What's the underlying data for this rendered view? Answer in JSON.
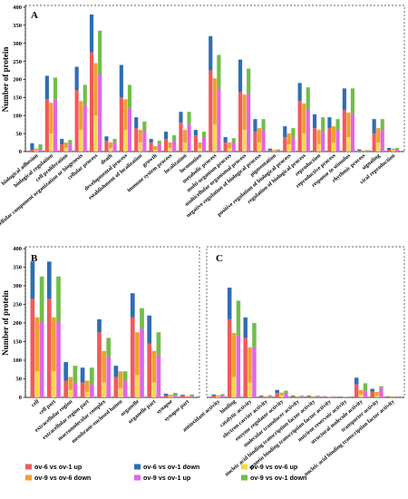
{
  "series_legend": [
    {
      "name": "ov-6 vs ov-1 up",
      "color": "#f15a5a"
    },
    {
      "name": "ov-6 vs ov-1 down",
      "color": "#2f6db5"
    },
    {
      "name": "ov-9 vs ov-6 up",
      "color": "#f5d94a"
    },
    {
      "name": "ov-9 vs ov-6 down",
      "color": "#f0a030"
    },
    {
      "name": "ov-9 vs ov-1 up",
      "color": "#e066e6"
    },
    {
      "name": "ov-9 vs ov-1 down",
      "color": "#6fbf4a"
    }
  ],
  "chart_data": [
    {
      "type": "bar",
      "panel": "A",
      "ylabel": "Number of protein",
      "ylim": [
        0,
        400
      ],
      "yticks": [
        0,
        50,
        100,
        150,
        200,
        250,
        300,
        350,
        400
      ],
      "categories": [
        "biological adhesion",
        "biological regulation",
        "cell proliferation",
        "cellular component organization or biogenesis",
        "cellular process",
        "death",
        "developmental process",
        "establishment of localization",
        "growth",
        "immune system process",
        "localization",
        "locomotion",
        "metabolic process",
        "multi-organism process",
        "multicellular organismal process",
        "negative regulation of biological process",
        "pigmentation",
        "positive regulation of biological process",
        "regulation of biological process",
        "reproduction",
        "reproductive process",
        "response to stimulus",
        "rhythmic process",
        "signaling",
        "viral reproduction"
      ],
      "series": [
        {
          "name": "ov-6 vs ov-1 up",
          "values": [
            5,
            145,
            20,
            170,
            275,
            30,
            150,
            65,
            25,
            35,
            80,
            45,
            225,
            25,
            165,
            55,
            3,
            40,
            140,
            65,
            65,
            115,
            2,
            50,
            5
          ]
        },
        {
          "name": "ov-6 vs ov-1 down",
          "values": [
            18,
            65,
            15,
            65,
            105,
            12,
            90,
            30,
            10,
            20,
            30,
            15,
            95,
            15,
            90,
            35,
            5,
            30,
            50,
            38,
            30,
            60,
            4,
            40,
            5
          ]
        },
        {
          "name": "ov-9 vs ov-6 up",
          "values": [
            3,
            50,
            10,
            60,
            100,
            10,
            60,
            25,
            5,
            10,
            25,
            10,
            75,
            10,
            60,
            25,
            2,
            20,
            50,
            20,
            25,
            40,
            1,
            25,
            3
          ]
        },
        {
          "name": "ov-9 vs ov-6 down",
          "values": [
            5,
            85,
            15,
            80,
            145,
            15,
            85,
            35,
            10,
            15,
            35,
            15,
            128,
            15,
            98,
            40,
            3,
            30,
            83,
            40,
            45,
            68,
            2,
            40,
            5
          ]
        },
        {
          "name": "ov-9 vs ov-1 up",
          "values": [
            5,
            145,
            20,
            130,
            215,
            25,
            120,
            58,
            20,
            30,
            75,
            40,
            175,
            25,
            160,
            60,
            3,
            40,
            118,
            55,
            60,
            105,
            2,
            60,
            5
          ]
        },
        {
          "name": "ov-9 vs ov-1 down",
          "values": [
            15,
            60,
            12,
            55,
            120,
            10,
            65,
            25,
            10,
            15,
            35,
            15,
            93,
            12,
            70,
            30,
            3,
            25,
            60,
            40,
            30,
            70,
            2,
            30,
            5
          ]
        }
      ]
    },
    {
      "type": "bar",
      "panel": "B",
      "ylabel": "Number of protein",
      "ylim": [
        0,
        400
      ],
      "yticks": [
        0,
        50,
        100,
        150,
        200,
        250,
        300,
        350,
        400
      ],
      "categories": [
        "cell",
        "cell part",
        "extracellular region",
        "extracellular region part",
        "macromolecular complex",
        "membrane-enclosed lumen",
        "organelle",
        "organelle part",
        "synapse",
        "synapse part"
      ],
      "series": [
        {
          "name": "ov-6 vs ov-1 up",
          "values": [
            265,
            265,
            45,
            40,
            175,
            55,
            215,
            145,
            5,
            4
          ]
        },
        {
          "name": "ov-6 vs ov-1 down",
          "values": [
            100,
            100,
            50,
            40,
            35,
            30,
            65,
            75,
            5,
            3
          ]
        },
        {
          "name": "ov-9 vs ov-6 up",
          "values": [
            70,
            70,
            20,
            15,
            40,
            25,
            60,
            40,
            2,
            1
          ]
        },
        {
          "name": "ov-9 vs ov-6 down",
          "values": [
            145,
            145,
            35,
            30,
            85,
            45,
            115,
            85,
            5,
            3
          ]
        },
        {
          "name": "ov-9 vs ov-1 up",
          "values": [
            205,
            205,
            40,
            35,
            110,
            45,
            185,
            115,
            4,
            4
          ]
        },
        {
          "name": "ov-9 vs ov-1 down",
          "values": [
            120,
            120,
            45,
            45,
            50,
            25,
            55,
            60,
            8,
            4
          ]
        }
      ]
    },
    {
      "type": "bar",
      "panel": "C",
      "categories": [
        "antioxidant activity",
        "binding",
        "catalytic activity",
        "electron carrier activity",
        "enzyme regulator activity",
        "molecular transducer activity",
        "nucleic acid binding transcription factor activity",
        "protein binding transcription factor activity",
        "nutrient reservoir activity",
        "structural molecule activity",
        "transporter activity",
        "nucleic acid binding transcription factor activity"
      ],
      "series": [
        {
          "name": "ov-6 vs ov-1 up",
          "values": [
            5,
            210,
            160,
            3,
            12,
            3,
            3,
            2,
            1,
            35,
            15,
            2
          ]
        },
        {
          "name": "ov-6 vs ov-1 down",
          "values": [
            3,
            85,
            55,
            2,
            8,
            2,
            2,
            1,
            1,
            18,
            8,
            1
          ]
        },
        {
          "name": "ov-9 vs ov-6 up",
          "values": [
            2,
            55,
            40,
            1,
            5,
            1,
            1,
            1,
            0,
            8,
            5,
            1
          ]
        },
        {
          "name": "ov-9 vs ov-6 down",
          "values": [
            4,
            118,
            95,
            2,
            8,
            2,
            2,
            1,
            1,
            12,
            10,
            2
          ]
        },
        {
          "name": "ov-9 vs ov-1 up",
          "values": [
            5,
            165,
            135,
            3,
            10,
            3,
            3,
            2,
            1,
            18,
            25,
            2
          ]
        },
        {
          "name": "ov-9 vs ov-1 down",
          "values": [
            4,
            95,
            65,
            3,
            8,
            2,
            2,
            1,
            1,
            20,
            5,
            1
          ]
        }
      ]
    }
  ]
}
